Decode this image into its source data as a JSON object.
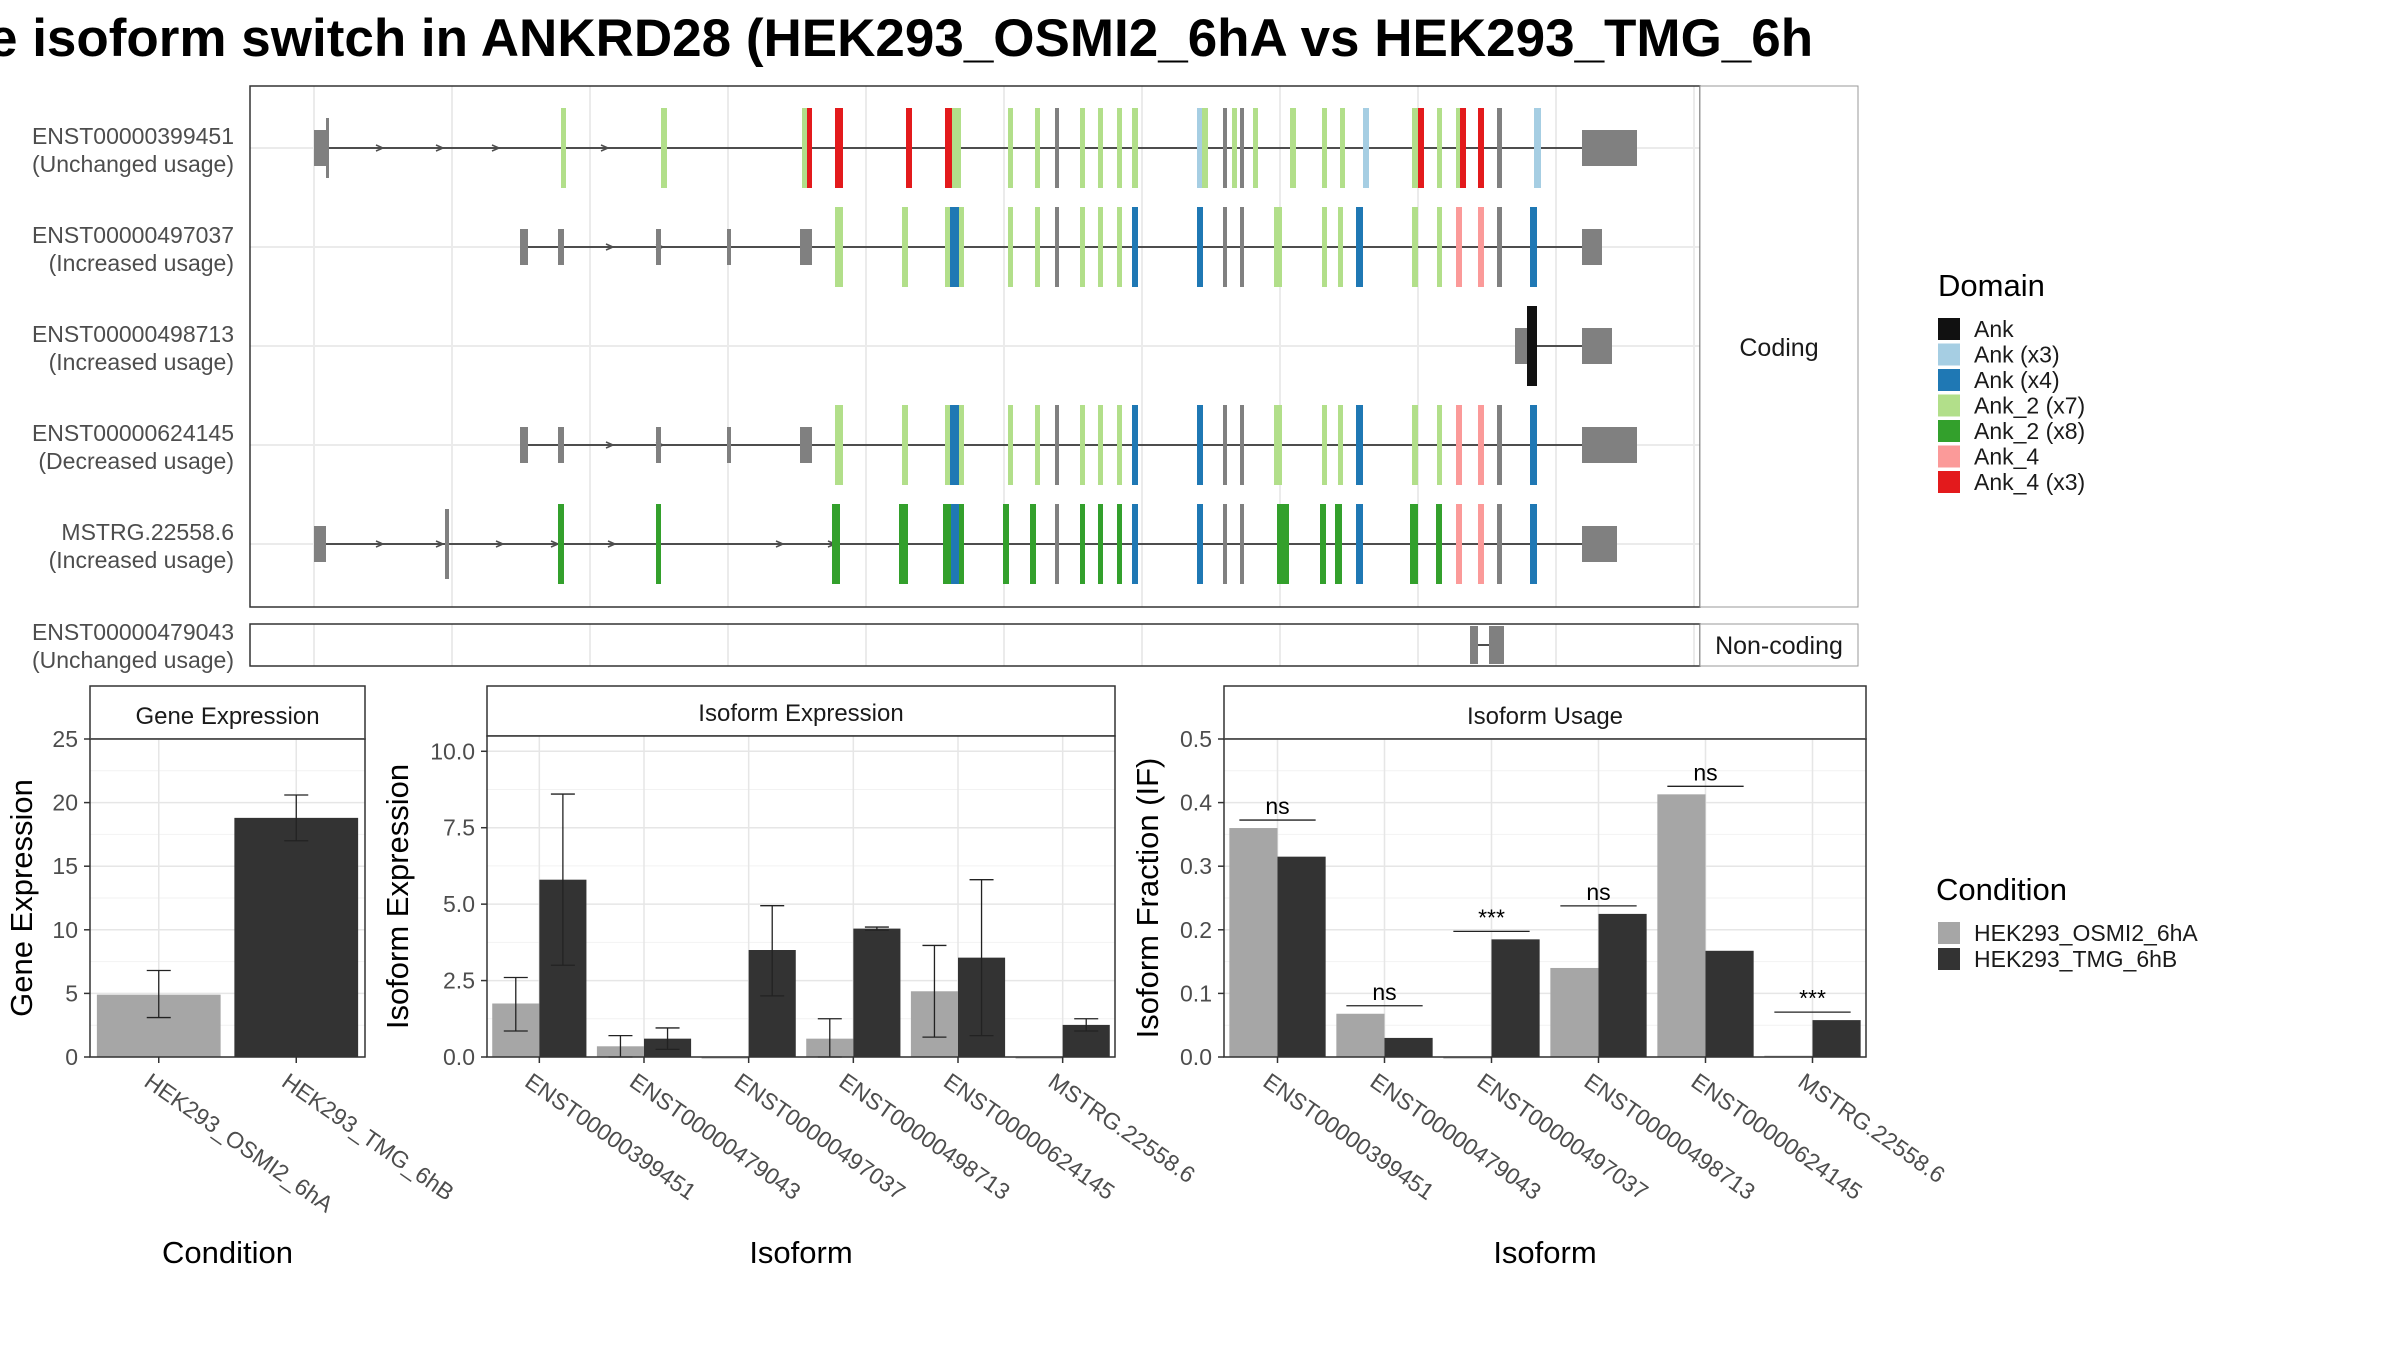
{
  "title": "e isoform switch in ANKRD28 (HEK293_OSMI2_6hA vs HEK293_TMG_6h",
  "colors": {
    "intron": "#4d4d4d",
    "utr": "#808080",
    "exon_noncoding": "#808080",
    "ank": "#111111",
    "ank_x3": "#a6cee3",
    "ank_x4": "#1f78b4",
    "ank2_x7": "#b2df8a",
    "ank2_x8": "#33a02c",
    "ank4": "#fb9a99",
    "ank4_x3": "#e31a1c",
    "cond_a": "#a6a6a6",
    "cond_b": "#333333"
  },
  "isoform_panel": {
    "coding_strip": "Coding",
    "noncoding_strip": "Non-coding",
    "isoforms": [
      {
        "id": "ENST00000399451",
        "usage": "(Unchanged usage)"
      },
      {
        "id": "ENST00000497037",
        "usage": "(Increased usage)"
      },
      {
        "id": "ENST00000498713",
        "usage": "(Increased usage)"
      },
      {
        "id": "ENST00000624145",
        "usage": "(Decreased usage)"
      },
      {
        "id": "MSTRG.22558.6",
        "usage": "(Increased usage)"
      }
    ],
    "noncoding_isoform": {
      "id": "ENST00000479043",
      "usage": "(Unchanged usage)"
    }
  },
  "legend_domain": {
    "title": "Domain",
    "items": [
      {
        "label": "Ank",
        "color": "#111111"
      },
      {
        "label": "Ank (x3)",
        "color": "#a6cee3"
      },
      {
        "label": "Ank (x4)",
        "color": "#1f78b4"
      },
      {
        "label": "Ank_2 (x7)",
        "color": "#b2df8a"
      },
      {
        "label": "Ank_2 (x8)",
        "color": "#33a02c"
      },
      {
        "label": "Ank_4",
        "color": "#fb9a99"
      },
      {
        "label": "Ank_4 (x3)",
        "color": "#e31a1c"
      }
    ]
  },
  "legend_condition": {
    "title": "Condition",
    "items": [
      {
        "label": "HEK293_OSMI2_6hA",
        "color": "#a6a6a6"
      },
      {
        "label": "HEK293_TMG_6hB",
        "color": "#333333"
      }
    ]
  },
  "chart_data": [
    {
      "type": "bar",
      "title": "Gene Expression",
      "xlabel": "Condition",
      "ylabel": "Gene Expression",
      "ylim": [
        0,
        25
      ],
      "yticks": [
        "0",
        "5",
        "10",
        "15",
        "20",
        "25"
      ],
      "categories": [
        "HEK293_OSMI2_6hA",
        "HEK293_TMG_6hB"
      ],
      "values": [
        4.9,
        18.8
      ],
      "err_low": [
        3.1,
        17.0
      ],
      "err_high": [
        6.8,
        20.6
      ]
    },
    {
      "type": "bar",
      "title": "Isoform Expression",
      "xlabel": "Isoform",
      "ylabel": "Isoform Expression",
      "ylim": [
        0,
        10.5
      ],
      "yticks": [
        "0.0",
        "2.5",
        "5.0",
        "7.5",
        "10.0"
      ],
      "categories": [
        "ENST00000399451",
        "ENST00000479043",
        "ENST00000497037",
        "ENST00000498713",
        "ENST00000624145",
        "MSTRG.22558.6"
      ],
      "series": [
        {
          "name": "HEK293_OSMI2_6hA",
          "values": [
            1.75,
            0.35,
            0.0,
            0.6,
            2.15,
            0.0
          ],
          "err_low": [
            0.85,
            0.0,
            0.0,
            0.0,
            0.65,
            0.0
          ],
          "err_high": [
            2.6,
            0.7,
            0.0,
            1.25,
            3.65,
            0.0
          ]
        },
        {
          "name": "HEK293_TMG_6hB",
          "values": [
            5.8,
            0.6,
            3.5,
            4.2,
            3.25,
            1.05
          ],
          "err_low": [
            3.0,
            0.25,
            2.0,
            4.15,
            0.7,
            0.85
          ],
          "err_high": [
            8.6,
            0.95,
            4.95,
            4.25,
            5.8,
            1.25
          ]
        }
      ]
    },
    {
      "type": "bar",
      "title": "Isoform Usage",
      "xlabel": "Isoform",
      "ylabel": "Isoform Fraction (IF)",
      "ylim": [
        0,
        0.5
      ],
      "yticks": [
        "0.0",
        "0.1",
        "0.2",
        "0.3",
        "0.4",
        "0.5"
      ],
      "categories": [
        "ENST00000399451",
        "ENST00000479043",
        "ENST00000497037",
        "ENST00000498713",
        "ENST00000624145",
        "MSTRG.22558.6"
      ],
      "series": [
        {
          "name": "HEK293_OSMI2_6hA",
          "values": [
            0.36,
            0.068,
            0.0,
            0.14,
            0.413,
            0.002
          ]
        },
        {
          "name": "HEK293_TMG_6hB",
          "values": [
            0.315,
            0.03,
            0.185,
            0.225,
            0.167,
            0.058
          ]
        }
      ],
      "significance": [
        "ns",
        "ns",
        "***",
        "ns",
        "ns",
        "***"
      ]
    }
  ]
}
